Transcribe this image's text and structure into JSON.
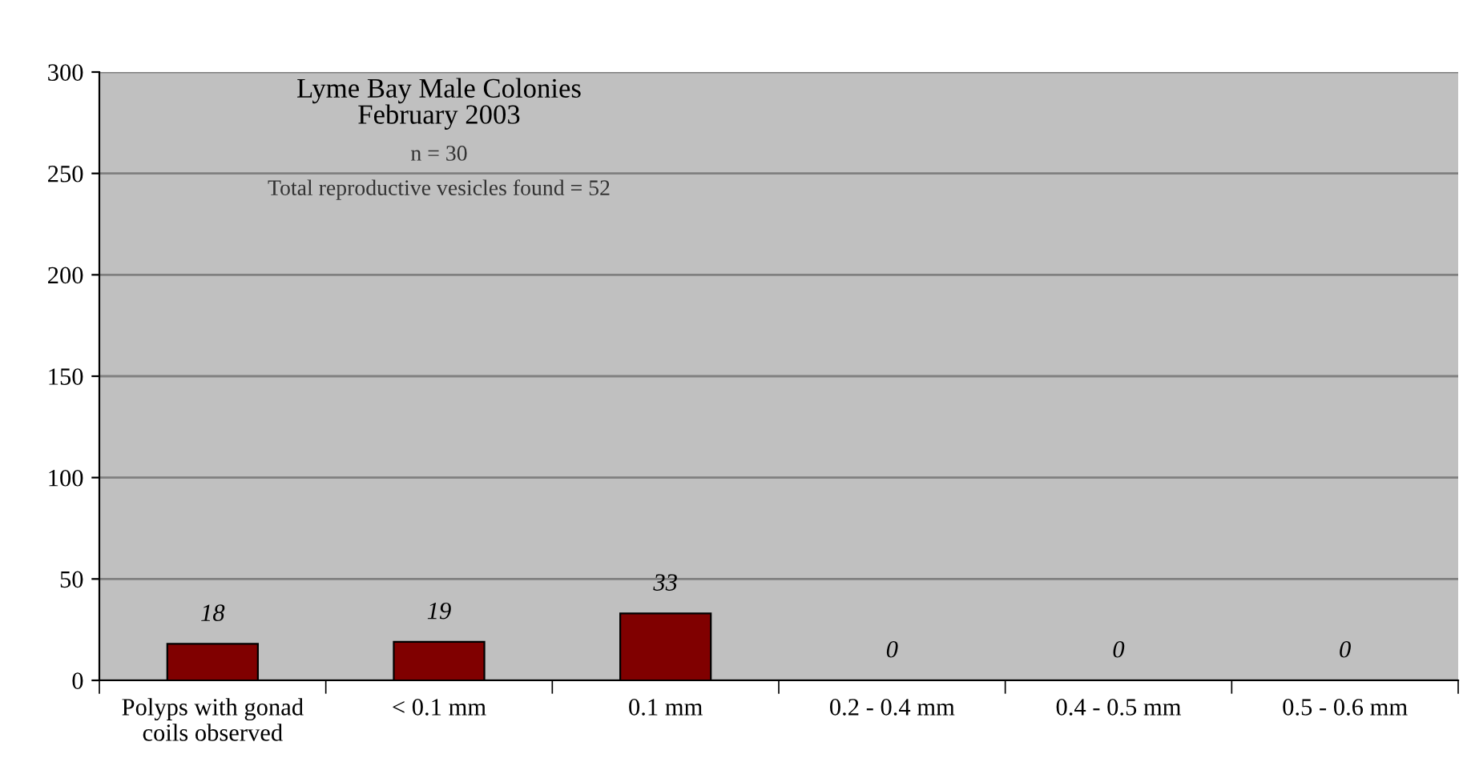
{
  "chart_data": {
    "type": "bar",
    "title": "Lyme Bay Male Colonies\nFebruary 2003",
    "subtitle": "n = 30",
    "annotations": [
      "Total reproductive vesicles found = 52"
    ],
    "categories": [
      "Polyps with gonad\ncoils observed",
      "< 0.1 mm",
      "0.1 mm",
      "0.2 - 0.4 mm",
      "0.4 - 0.5 mm",
      "0.5 - 0.6 mm"
    ],
    "values": [
      18,
      19,
      33,
      0,
      0,
      0
    ],
    "color": "#800000",
    "ylim": [
      0,
      300
    ],
    "yticks": [
      0,
      50,
      100,
      150,
      200,
      250,
      300
    ],
    "grid": "y",
    "data_labels": true,
    "legend": false
  }
}
